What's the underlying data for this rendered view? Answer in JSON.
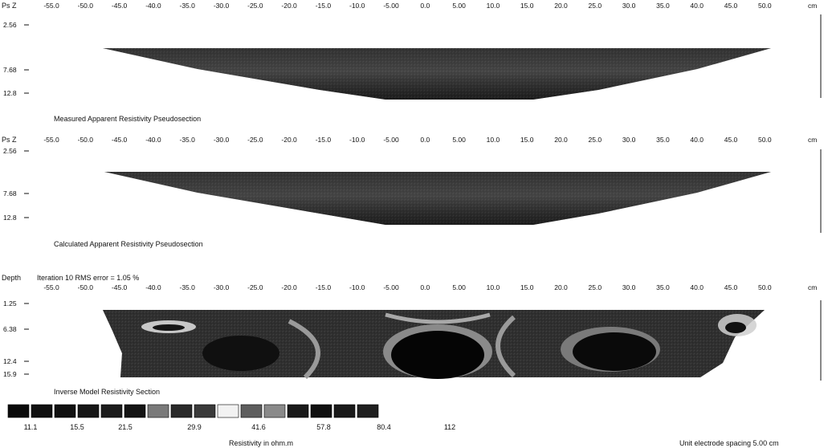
{
  "chart_data": [
    {
      "type": "heatmap",
      "title": "Measured Apparent Resistivity Pseudosection",
      "ylabel": "Ps Z",
      "x_ticks": [
        "-55.0",
        "-50.0",
        "-45.0",
        "-40.0",
        "-35.0",
        "-30.0",
        "-25.0",
        "-20.0",
        "-15.0",
        "-10.0",
        "-5.00",
        "0.0",
        "5.00",
        "10.0",
        "15.0",
        "20.0",
        "25.0",
        "30.0",
        "35.0",
        "40.0",
        "45.0",
        "50.0"
      ],
      "x_unit": "cm",
      "y_ticks": [
        "2.56",
        "7.68",
        "12.8"
      ],
      "xlim": [
        -55,
        50
      ]
    },
    {
      "type": "heatmap",
      "title": "Calculated Apparent Resistivity Pseudosection",
      "ylabel": "Ps Z",
      "x_ticks": [
        "-55.0",
        "-50.0",
        "-45.0",
        "-40.0",
        "-35.0",
        "-30.0",
        "-25.0",
        "-20.0",
        "-15.0",
        "-10.0",
        "-5.00",
        "0.0",
        "5.00",
        "10.0",
        "15.0",
        "20.0",
        "25.0",
        "30.0",
        "35.0",
        "40.0",
        "45.0",
        "50.0"
      ],
      "x_unit": "cm",
      "y_ticks": [
        "2.56",
        "7.68",
        "12.8"
      ],
      "xlim": [
        -55,
        50
      ]
    },
    {
      "type": "heatmap",
      "title": "Inverse Model Resistivity Section",
      "ylabel": "Depth",
      "subtitle": "Iteration 10 RMS error = 1.05 %",
      "x_ticks": [
        "-55.0",
        "-50.0",
        "-45.0",
        "-40.0",
        "-35.0",
        "-30.0",
        "-25.0",
        "-20.0",
        "-15.0",
        "-10.0",
        "-5.00",
        "0.0",
        "5.00",
        "10.0",
        "15.0",
        "20.0",
        "25.0",
        "30.0",
        "35.0",
        "40.0",
        "45.0",
        "50.0"
      ],
      "x_unit": "cm",
      "y_ticks": [
        "1.25",
        "6.38",
        "12.4",
        "15.9"
      ],
      "xlim": [
        -55,
        50
      ]
    }
  ],
  "legend": {
    "values": [
      "11.1",
      "15.5",
      "21.5",
      "29.9",
      "41.6",
      "57.8",
      "80.4",
      "112"
    ],
    "swatch_colors": [
      "#0a0a0a",
      "#111111",
      "#111111",
      "#161616",
      "#1c1c1c",
      "#141414",
      "#7a7a7a",
      "#2a2a2a",
      "#3a3a3a",
      "#f2f2f2",
      "#5e5e5e",
      "#8a8a8a",
      "#1a1a1a",
      "#111111",
      "#1a1a1a",
      "#202020"
    ],
    "caption": "Resistivity in ohm.m"
  },
  "footer": {
    "spacing": "Unit electrode spacing 5.00 cm"
  }
}
